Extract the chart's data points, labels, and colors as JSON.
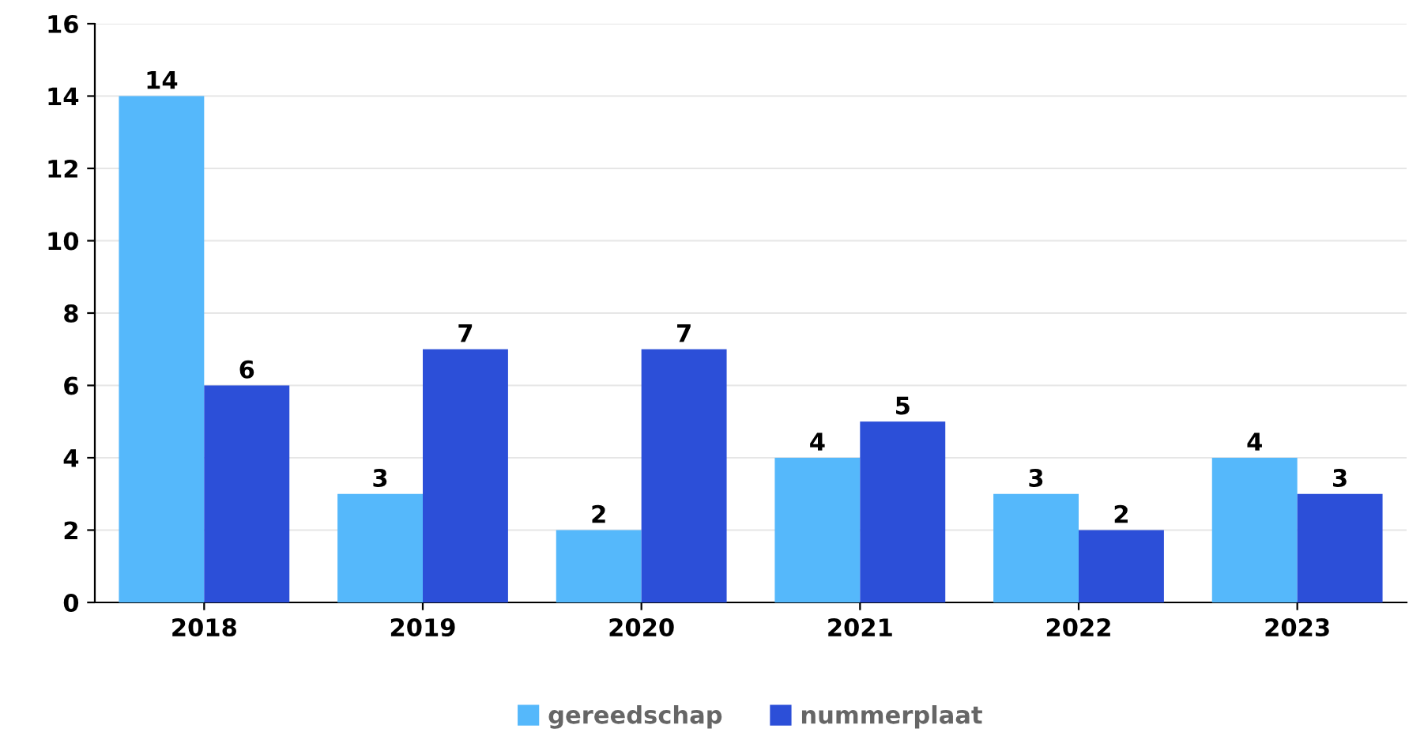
{
  "chart_data": {
    "type": "bar",
    "categories": [
      "2018",
      "2019",
      "2020",
      "2021",
      "2022",
      "2023"
    ],
    "series": [
      {
        "name": "gereedschap",
        "color": "#55b8fb",
        "values": [
          14,
          3,
          2,
          4,
          3,
          4
        ]
      },
      {
        "name": "nummerplaat",
        "color": "#2c4fd8",
        "values": [
          6,
          7,
          7,
          5,
          2,
          3
        ]
      }
    ],
    "ylim": [
      0,
      16
    ],
    "yticks": [
      0,
      2,
      4,
      6,
      8,
      10,
      12,
      14,
      16
    ],
    "grid": "y",
    "legend": "bottom",
    "data_labels": true
  }
}
